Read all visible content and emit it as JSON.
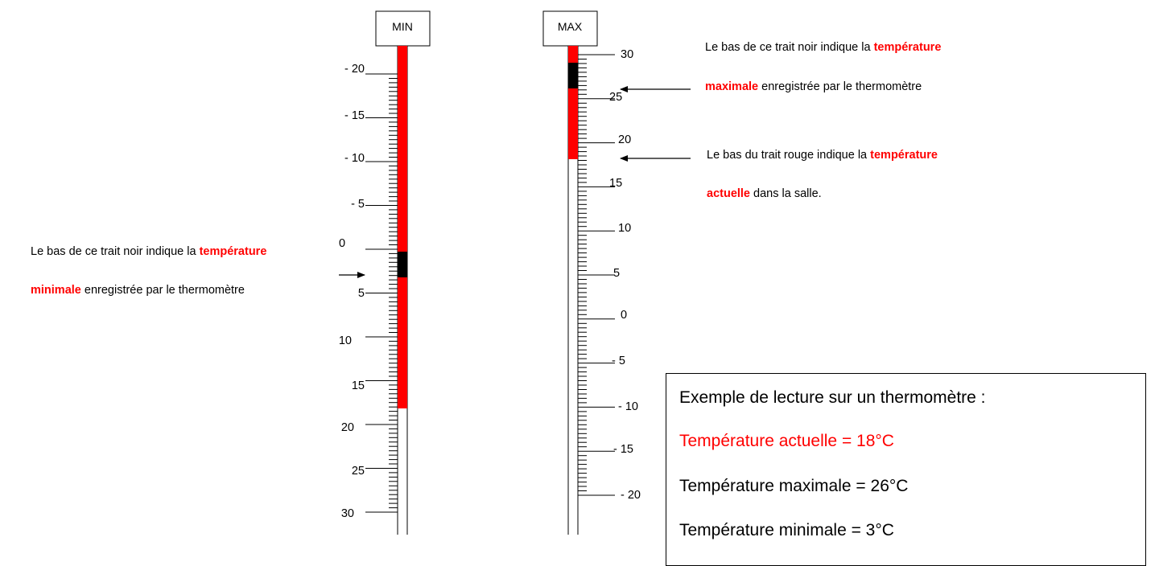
{
  "colors": {
    "accent": "#ff0000",
    "mercury": "#ff0000",
    "marker": "#000000",
    "tube_outline": "#000000"
  },
  "min_thermometer": {
    "header": "MIN",
    "scale_labels": [
      "- 20",
      "- 15",
      "- 10",
      "- 5",
      "0",
      "5",
      "10",
      "15",
      "20",
      "25",
      "30"
    ]
  },
  "max_thermometer": {
    "header": "MAX",
    "scale_labels": [
      "30",
      "25",
      "20",
      "15",
      "10",
      "5",
      "0",
      "- 5",
      "- 10",
      "- 15",
      "- 20"
    ]
  },
  "notes": {
    "max_marker": {
      "before": "Le bas de ce trait noir indique la ",
      "highlight_a": "température",
      "highlight_b": "maximale",
      "after": " enregistrée par le thermomètre"
    },
    "current": {
      "before": "Le bas du trait rouge indique la ",
      "highlight_a": "température",
      "highlight_b": "actuelle",
      "after": " dans la salle."
    },
    "min_marker": {
      "before": "Le bas de ce trait noir indique la ",
      "highlight_a": "température",
      "highlight_b": "minimale",
      "after": " enregistrée par le thermomètre"
    }
  },
  "example": {
    "title": "Exemple de lecture sur un thermomètre :",
    "current_line": "Température actuelle = 18°C",
    "max_line": "Température maximale = 26°C",
    "min_line": "Température minimale = 3°C"
  },
  "readings": {
    "current_c": 18,
    "max_c": 26,
    "min_c": 3
  }
}
